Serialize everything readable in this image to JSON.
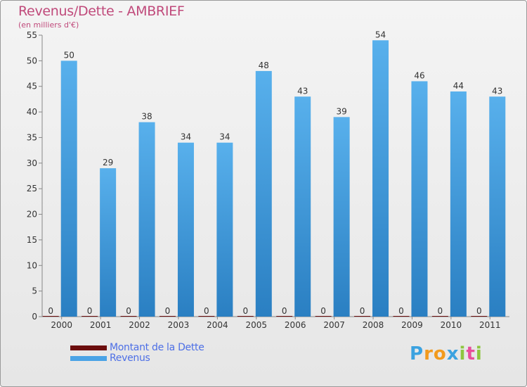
{
  "title": "Revenus/Dette - AMBRIEF",
  "subtitle": "(en milliers d'€)",
  "brand": {
    "letters": [
      "P",
      "r",
      "o",
      "x",
      "i",
      "t",
      "i"
    ],
    "colors": [
      "#3ba2e0",
      "#f29a1c",
      "#f29a1c",
      "#3ba2e0",
      "#8dc63f",
      "#e84e9a",
      "#8dc63f"
    ]
  },
  "chart_data": {
    "type": "bar",
    "categories": [
      "2000",
      "2001",
      "2002",
      "2003",
      "2004",
      "2005",
      "2006",
      "2007",
      "2008",
      "2009",
      "2010",
      "2011"
    ],
    "series": [
      {
        "name": "Montant de la Dette",
        "color": "#6b0d0d",
        "values": [
          0,
          0,
          0,
          0,
          0,
          0,
          0,
          0,
          0,
          0,
          0,
          0
        ]
      },
      {
        "name": "Revenus",
        "color": "#4aa3e6",
        "values": [
          50,
          29,
          38,
          34,
          34,
          48,
          43,
          39,
          54,
          46,
          44,
          43
        ]
      }
    ],
    "ylim": [
      0,
      55
    ],
    "yticks": [
      0,
      5,
      10,
      15,
      20,
      25,
      30,
      35,
      40,
      45,
      50,
      55
    ],
    "grid": false,
    "legend": "bottom-left"
  }
}
